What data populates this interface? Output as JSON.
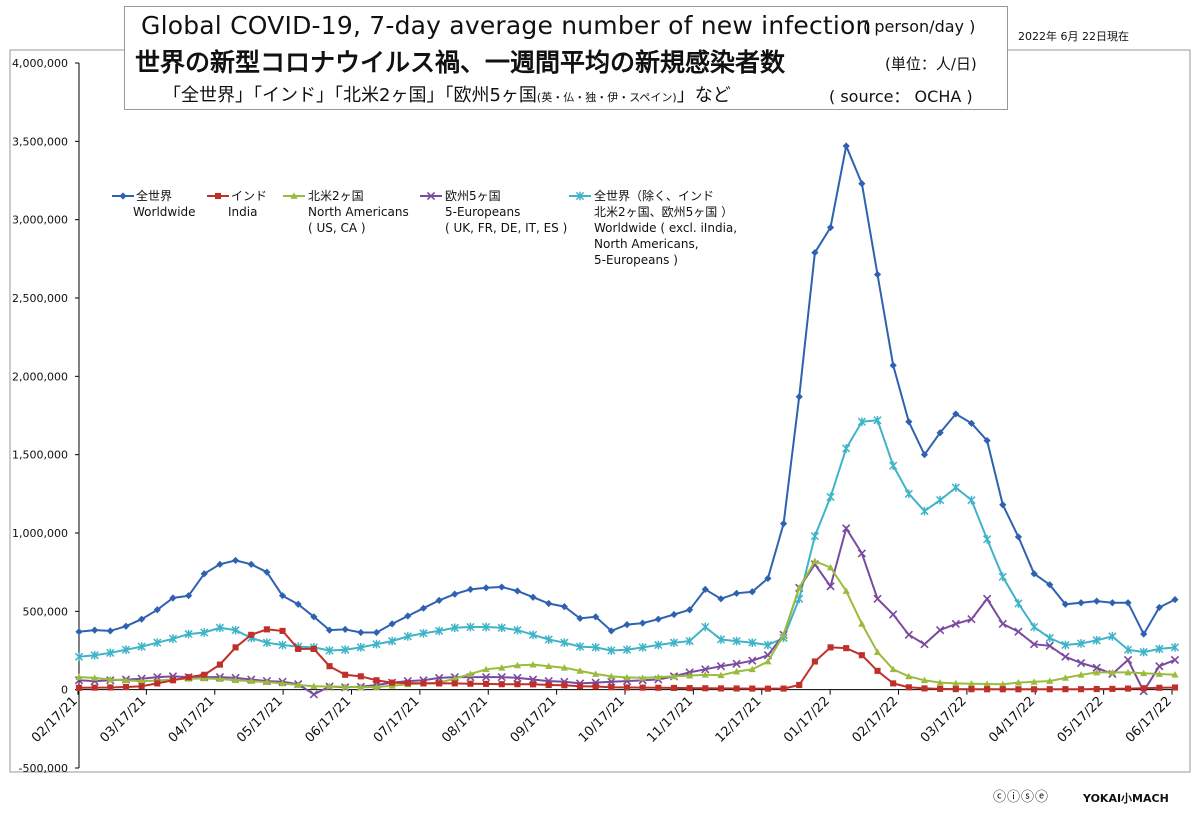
{
  "header": {
    "title_en": "Global COVID-19, 7-day average number of new infection",
    "title_en_unit": "( person/day )",
    "title_jp": "世界の新型コロナウイルス禍、一週間平均の新規感染者数",
    "title_jp_unit": "(単位：人/日)",
    "subtitle_main": "「全世界」「インド」「北米2ヶ国」「欧州5ヶ国",
    "subtitle_small": "(英・仏・独・伊・スペイン)",
    "subtitle_tail": "」など",
    "source": "( source： OCHA )",
    "date": "2022年 6月 22日現在"
  },
  "footer": {
    "license": "ⓒⓘⓢⓔ",
    "signature": "YOKAI小MACH"
  },
  "chart_data": {
    "type": "line",
    "x_tick_labels": [
      "02/17/21",
      "03/17/21",
      "04/17/21",
      "05/17/21",
      "06/17/21",
      "07/17/21",
      "08/17/21",
      "09/17/21",
      "10/17/21",
      "11/17/21",
      "12/17/21",
      "01/17/22",
      "02/17/22",
      "03/17/22",
      "04/17/22",
      "05/17/22",
      "06/17/22"
    ],
    "ylim": [
      -500000,
      4000000
    ],
    "y_tick_values": [
      4000000,
      3500000,
      3000000,
      2500000,
      2000000,
      1500000,
      1000000,
      500000,
      0,
      -500000
    ],
    "y_tick_labels": [
      "4,000,000",
      "3,500,000",
      "3,000,000",
      "2,500,000",
      "2,000,000",
      "1,500,000",
      "1,000,000",
      "500,000",
      "0",
      "-500,000"
    ],
    "grid": false,
    "legend_position": "top-left",
    "series": [
      {
        "name": "全世界",
        "name_line2": "Worldwide",
        "name_line3": "",
        "name_line4": "",
        "name_line5": "",
        "color": "#2e62b0",
        "marker": "diamond",
        "values": [
          370000,
          380000,
          375000,
          405000,
          450000,
          510000,
          585000,
          600000,
          740000,
          800000,
          825000,
          800000,
          750000,
          600000,
          545000,
          465000,
          380000,
          385000,
          365000,
          365000,
          420000,
          470000,
          520000,
          570000,
          610000,
          640000,
          650000,
          655000,
          630000,
          590000,
          550000,
          530000,
          455000,
          465000,
          375000,
          415000,
          425000,
          450000,
          480000,
          510000,
          640000,
          580000,
          615000,
          625000,
          710000,
          1060000,
          1870000,
          2790000,
          2950000,
          3470000,
          3230000,
          2650000,
          2070000,
          1710000,
          1500000,
          1640000,
          1760000,
          1700000,
          1590000,
          1180000,
          975000,
          740000,
          670000,
          545000,
          555000,
          565000,
          555000,
          555000,
          355000,
          525000,
          575000
        ]
      },
      {
        "name": "インド",
        "name_line2": "India",
        "name_line3": "",
        "name_line4": "",
        "name_line5": "",
        "color": "#c0302a",
        "marker": "square",
        "values": [
          12000,
          13000,
          14000,
          17000,
          22000,
          40000,
          60000,
          80000,
          95000,
          160000,
          270000,
          350000,
          385000,
          375000,
          260000,
          260000,
          150000,
          95000,
          85000,
          60000,
          45000,
          42000,
          40000,
          40000,
          40000,
          38000,
          37000,
          35000,
          35000,
          34000,
          30000,
          28000,
          22000,
          20000,
          16000,
          14000,
          13000,
          12000,
          11000,
          10000,
          9000,
          8000,
          7500,
          7000,
          6500,
          7000,
          30000,
          180000,
          270000,
          265000,
          220000,
          120000,
          40000,
          15000,
          8000,
          5000,
          3500,
          3000,
          2500,
          2500,
          2500,
          2500,
          3000,
          3000,
          3000,
          4000,
          5000,
          7000,
          9000,
          12000,
          14000
        ]
      },
      {
        "name": "北米2ヶ国",
        "name_line2": "North Americans",
        "name_line3": "( US, CA )",
        "name_line4": "",
        "name_line5": "",
        "color": "#9bbb3c",
        "marker": "triangle",
        "values": [
          80000,
          75000,
          65000,
          60000,
          55000,
          58000,
          65000,
          70000,
          72000,
          68000,
          60000,
          55000,
          48000,
          40000,
          30000,
          22000,
          20000,
          18000,
          16000,
          17000,
          25000,
          35000,
          40000,
          45000,
          70000,
          100000,
          130000,
          140000,
          155000,
          160000,
          150000,
          140000,
          120000,
          100000,
          85000,
          78000,
          75000,
          80000,
          85000,
          90000,
          95000,
          92000,
          115000,
          130000,
          180000,
          350000,
          650000,
          820000,
          780000,
          630000,
          420000,
          240000,
          130000,
          85000,
          60000,
          45000,
          40000,
          38000,
          36000,
          34000,
          45000,
          50000,
          55000,
          75000,
          95000,
          110000,
          110000,
          110000,
          105000,
          100000,
          95000
        ]
      },
      {
        "name": "欧州5ヶ国",
        "name_line2": "5-Europeans",
        "name_line3": "( UK, FR, DE, IT, ES )",
        "name_line4": "",
        "name_line5": "",
        "color": "#7a4aa0",
        "marker": "x",
        "values": [
          60000,
          55000,
          60000,
          65000,
          70000,
          80000,
          85000,
          80000,
          80000,
          80000,
          75000,
          65000,
          55000,
          50000,
          35000,
          -30000,
          20000,
          15000,
          18000,
          30000,
          45000,
          55000,
          60000,
          75000,
          80000,
          80000,
          80000,
          80000,
          75000,
          65000,
          55000,
          50000,
          40000,
          45000,
          50000,
          55000,
          60000,
          65000,
          85000,
          110000,
          130000,
          150000,
          165000,
          185000,
          220000,
          350000,
          650000,
          800000,
          660000,
          1030000,
          870000,
          580000,
          480000,
          350000,
          290000,
          380000,
          420000,
          450000,
          580000,
          420000,
          370000,
          290000,
          280000,
          210000,
          170000,
          140000,
          100000,
          190000,
          -10000,
          150000,
          190000
        ]
      },
      {
        "name": "全世界（除く、インド",
        "name_line2": "北米2ヶ国、欧州5ヶ国 ）",
        "name_line3": "Worldwide ( excl. iIndia,",
        "name_line4": "North Americans,",
        "name_line5": "5-Europeans )",
        "color": "#3fb3c8",
        "marker": "asterisk",
        "values": [
          210000,
          220000,
          235000,
          255000,
          275000,
          300000,
          325000,
          355000,
          365000,
          395000,
          380000,
          330000,
          300000,
          285000,
          275000,
          270000,
          250000,
          255000,
          270000,
          290000,
          310000,
          340000,
          360000,
          375000,
          395000,
          400000,
          400000,
          395000,
          380000,
          350000,
          320000,
          300000,
          275000,
          270000,
          250000,
          255000,
          270000,
          285000,
          300000,
          310000,
          400000,
          320000,
          310000,
          300000,
          285000,
          330000,
          580000,
          980000,
          1230000,
          1540000,
          1710000,
          1720000,
          1430000,
          1250000,
          1140000,
          1210000,
          1290000,
          1210000,
          960000,
          720000,
          550000,
          400000,
          330000,
          285000,
          295000,
          315000,
          340000,
          255000,
          240000,
          260000,
          270000
        ]
      }
    ]
  }
}
